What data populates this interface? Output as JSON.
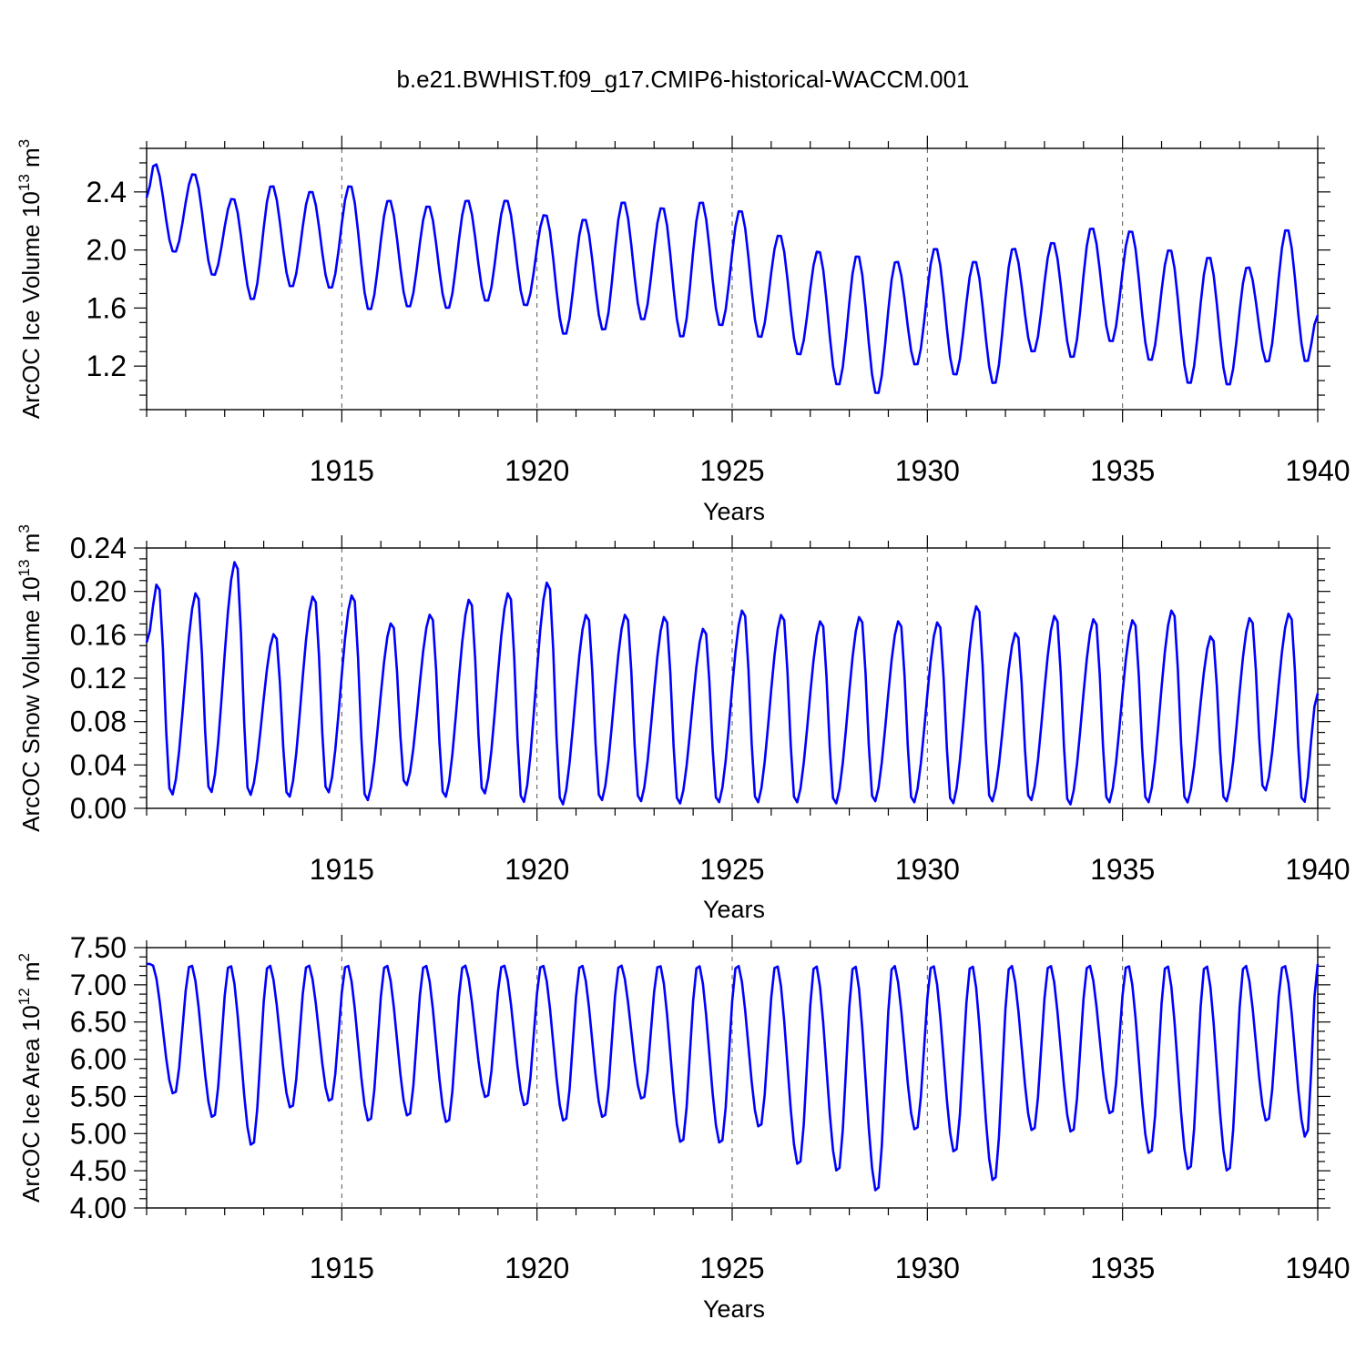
{
  "title": "b.e21.BWHIST.f09_g17.CMIP6-historical-WACCM.001",
  "colors": {
    "line": "#0000ff",
    "axis": "#000000",
    "grid": "#555555"
  },
  "chart_data": [
    {
      "type": "line",
      "name": "ice-volume",
      "ylabel": {
        "main": "ArcOC Ice Volume 10",
        "exp": "13",
        "unit": " m",
        "unit_exp": "3"
      },
      "xlabel": "Years",
      "xlim": [
        1910.0,
        1940.0
      ],
      "ylim": [
        0.9,
        2.7
      ],
      "xticks": [
        1915,
        1920,
        1925,
        1930,
        1935,
        1940
      ],
      "yticks": [
        1.2,
        1.6,
        2.0,
        2.4
      ],
      "ytick_labels": [
        "1.2",
        "1.6",
        "2.0",
        "2.4"
      ],
      "grid": "dashed vertical at major x ticks",
      "annual": [
        {
          "year": 1910,
          "max": 2.6,
          "min": 1.98
        },
        {
          "year": 1911,
          "max": 2.53,
          "min": 1.82
        },
        {
          "year": 1912,
          "max": 2.36,
          "min": 1.65
        },
        {
          "year": 1913,
          "max": 2.45,
          "min": 1.74
        },
        {
          "year": 1914,
          "max": 2.41,
          "min": 1.73
        },
        {
          "year": 1915,
          "max": 2.45,
          "min": 1.58
        },
        {
          "year": 1916,
          "max": 2.35,
          "min": 1.6
        },
        {
          "year": 1917,
          "max": 2.31,
          "min": 1.59
        },
        {
          "year": 1918,
          "max": 2.35,
          "min": 1.64
        },
        {
          "year": 1919,
          "max": 2.35,
          "min": 1.61
        },
        {
          "year": 1920,
          "max": 2.25,
          "min": 1.41
        },
        {
          "year": 1921,
          "max": 2.22,
          "min": 1.44
        },
        {
          "year": 1922,
          "max": 2.34,
          "min": 1.51
        },
        {
          "year": 1923,
          "max": 2.3,
          "min": 1.39
        },
        {
          "year": 1924,
          "max": 2.34,
          "min": 1.47
        },
        {
          "year": 1925,
          "max": 2.28,
          "min": 1.39
        },
        {
          "year": 1926,
          "max": 2.11,
          "min": 1.27
        },
        {
          "year": 1927,
          "max": 2.0,
          "min": 1.06
        },
        {
          "year": 1928,
          "max": 1.97,
          "min": 1.0
        },
        {
          "year": 1929,
          "max": 1.93,
          "min": 1.2
        },
        {
          "year": 1930,
          "max": 2.02,
          "min": 1.13
        },
        {
          "year": 1931,
          "max": 1.93,
          "min": 1.07
        },
        {
          "year": 1932,
          "max": 2.02,
          "min": 1.29
        },
        {
          "year": 1933,
          "max": 2.06,
          "min": 1.25
        },
        {
          "year": 1934,
          "max": 2.16,
          "min": 1.36
        },
        {
          "year": 1935,
          "max": 2.14,
          "min": 1.23
        },
        {
          "year": 1936,
          "max": 2.01,
          "min": 1.07
        },
        {
          "year": 1937,
          "max": 1.96,
          "min": 1.06
        },
        {
          "year": 1938,
          "max": 1.89,
          "min": 1.22
        },
        {
          "year": 1939,
          "max": 2.15,
          "min": 1.22
        }
      ],
      "start_value": 2.36,
      "end_value": 1.55,
      "peak_month": 3,
      "trough_month": 9
    },
    {
      "type": "line",
      "name": "snow-volume",
      "ylabel": {
        "main": "ArcOC Snow Volume 10",
        "exp": "13",
        "unit": " m",
        "unit_exp": "3"
      },
      "xlabel": "Years",
      "xlim": [
        1910.0,
        1940.0
      ],
      "ylim": [
        0.0,
        0.24
      ],
      "xticks": [
        1915,
        1920,
        1925,
        1930,
        1935,
        1940
      ],
      "yticks": [
        0.0,
        0.04,
        0.08,
        0.12,
        0.16,
        0.2,
        0.24
      ],
      "ytick_labels": [
        "0.00",
        "0.04",
        "0.08",
        "0.12",
        "0.16",
        "0.20",
        "0.24"
      ],
      "grid": "dashed vertical at major x ticks",
      "annual": [
        {
          "year": 1910,
          "max": 0.209,
          "min": 0.011
        },
        {
          "year": 1911,
          "max": 0.2,
          "min": 0.013
        },
        {
          "year": 1912,
          "max": 0.229,
          "min": 0.011
        },
        {
          "year": 1913,
          "max": 0.162,
          "min": 0.009
        },
        {
          "year": 1914,
          "max": 0.197,
          "min": 0.013
        },
        {
          "year": 1915,
          "max": 0.198,
          "min": 0.006
        },
        {
          "year": 1916,
          "max": 0.172,
          "min": 0.02
        },
        {
          "year": 1917,
          "max": 0.18,
          "min": 0.009
        },
        {
          "year": 1918,
          "max": 0.194,
          "min": 0.012
        },
        {
          "year": 1919,
          "max": 0.2,
          "min": 0.004
        },
        {
          "year": 1920,
          "max": 0.21,
          "min": 0.002
        },
        {
          "year": 1921,
          "max": 0.18,
          "min": 0.006
        },
        {
          "year": 1922,
          "max": 0.18,
          "min": 0.005
        },
        {
          "year": 1923,
          "max": 0.178,
          "min": 0.003
        },
        {
          "year": 1924,
          "max": 0.167,
          "min": 0.004
        },
        {
          "year": 1925,
          "max": 0.184,
          "min": 0.004
        },
        {
          "year": 1926,
          "max": 0.18,
          "min": 0.004
        },
        {
          "year": 1927,
          "max": 0.174,
          "min": 0.003
        },
        {
          "year": 1928,
          "max": 0.178,
          "min": 0.005
        },
        {
          "year": 1929,
          "max": 0.174,
          "min": 0.004
        },
        {
          "year": 1930,
          "max": 0.173,
          "min": 0.003
        },
        {
          "year": 1931,
          "max": 0.188,
          "min": 0.005
        },
        {
          "year": 1932,
          "max": 0.163,
          "min": 0.006
        },
        {
          "year": 1933,
          "max": 0.179,
          "min": 0.002
        },
        {
          "year": 1934,
          "max": 0.176,
          "min": 0.004
        },
        {
          "year": 1935,
          "max": 0.175,
          "min": 0.004
        },
        {
          "year": 1936,
          "max": 0.184,
          "min": 0.004
        },
        {
          "year": 1937,
          "max": 0.16,
          "min": 0.005
        },
        {
          "year": 1938,
          "max": 0.177,
          "min": 0.015
        },
        {
          "year": 1939,
          "max": 0.181,
          "min": 0.003
        }
      ],
      "start_value": 0.153,
      "end_value": 0.106,
      "peak_month": 4,
      "trough_month": 8
    },
    {
      "type": "line",
      "name": "ice-area",
      "ylabel": {
        "main": "ArcOC Ice Area 10",
        "exp": "12",
        "unit": " m",
        "unit_exp": "2"
      },
      "xlabel": "Years",
      "xlim": [
        1910.0,
        1940.0
      ],
      "ylim": [
        4.0,
        7.5
      ],
      "xticks": [
        1915,
        1920,
        1925,
        1930,
        1935,
        1940
      ],
      "yticks": [
        4.0,
        4.5,
        5.0,
        5.5,
        6.0,
        6.5,
        7.0,
        7.5
      ],
      "ytick_labels": [
        "4.00",
        "4.50",
        "5.00",
        "5.50",
        "6.00",
        "6.50",
        "7.00",
        "7.50"
      ],
      "grid": "dashed vertical at major x ticks",
      "annual": [
        {
          "year": 1910,
          "max": 7.28,
          "min": 5.52
        },
        {
          "year": 1911,
          "max": 7.28,
          "min": 5.2
        },
        {
          "year": 1912,
          "max": 7.28,
          "min": 4.82
        },
        {
          "year": 1913,
          "max": 7.28,
          "min": 5.33
        },
        {
          "year": 1914,
          "max": 7.28,
          "min": 5.42
        },
        {
          "year": 1915,
          "max": 7.28,
          "min": 5.15
        },
        {
          "year": 1916,
          "max": 7.28,
          "min": 5.22
        },
        {
          "year": 1917,
          "max": 7.28,
          "min": 5.13
        },
        {
          "year": 1918,
          "max": 7.28,
          "min": 5.47
        },
        {
          "year": 1919,
          "max": 7.28,
          "min": 5.36
        },
        {
          "year": 1920,
          "max": 7.28,
          "min": 5.15
        },
        {
          "year": 1921,
          "max": 7.28,
          "min": 5.2
        },
        {
          "year": 1922,
          "max": 7.28,
          "min": 5.45
        },
        {
          "year": 1923,
          "max": 7.28,
          "min": 4.86
        },
        {
          "year": 1924,
          "max": 7.28,
          "min": 4.85
        },
        {
          "year": 1925,
          "max": 7.28,
          "min": 5.07
        },
        {
          "year": 1926,
          "max": 7.28,
          "min": 4.56
        },
        {
          "year": 1927,
          "max": 7.28,
          "min": 4.47
        },
        {
          "year": 1928,
          "max": 7.28,
          "min": 4.2
        },
        {
          "year": 1929,
          "max": 7.28,
          "min": 5.03
        },
        {
          "year": 1930,
          "max": 7.28,
          "min": 4.73
        },
        {
          "year": 1931,
          "max": 7.28,
          "min": 4.34
        },
        {
          "year": 1932,
          "max": 7.28,
          "min": 5.02
        },
        {
          "year": 1933,
          "max": 7.28,
          "min": 5.0
        },
        {
          "year": 1934,
          "max": 7.28,
          "min": 5.25
        },
        {
          "year": 1935,
          "max": 7.28,
          "min": 4.71
        },
        {
          "year": 1936,
          "max": 7.28,
          "min": 4.49
        },
        {
          "year": 1937,
          "max": 7.28,
          "min": 4.47
        },
        {
          "year": 1938,
          "max": 7.28,
          "min": 5.15
        },
        {
          "year": 1939,
          "max": 7.28,
          "min": 4.93
        }
      ],
      "start_value": 7.28,
      "end_value": 7.28,
      "peak_month": 2,
      "trough_month": 9
    }
  ]
}
